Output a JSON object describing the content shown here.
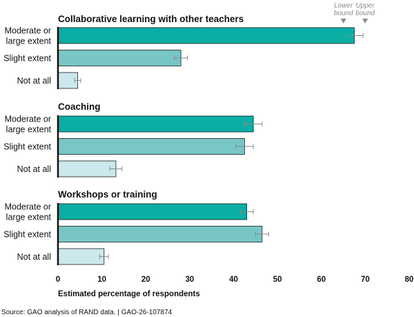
{
  "chart_data": {
    "type": "bar",
    "orientation": "horizontal",
    "xlabel": "Estimated percentage of respondents",
    "xlim": [
      0,
      80
    ],
    "xticks": [
      0,
      10,
      20,
      30,
      40,
      50,
      60,
      70,
      80
    ],
    "categories": [
      [
        "Moderate or",
        "large extent"
      ],
      [
        "Slight extent"
      ],
      [
        "Not at all"
      ]
    ],
    "panels": [
      {
        "title": "Collaborative learning with other teachers",
        "values": [
          67.5,
          28,
          4.5
        ],
        "lower": [
          65.5,
          26.5,
          3.8
        ],
        "upper": [
          69.5,
          29.5,
          5.2
        ]
      },
      {
        "title": "Coaching",
        "values": [
          44.5,
          42.5,
          13.2
        ],
        "lower": [
          42.5,
          40.5,
          11.8
        ],
        "upper": [
          46.5,
          44.5,
          14.6
        ]
      },
      {
        "title": "Workshops or training",
        "values": [
          43,
          46.5,
          10.5
        ],
        "lower": [
          41.5,
          45,
          9.5
        ],
        "upper": [
          44.5,
          48,
          11.5
        ]
      }
    ],
    "bound_labels": {
      "lower": [
        "Lower",
        "bound"
      ],
      "upper": [
        "Upper",
        "bound"
      ]
    },
    "colors": [
      "#0aaea4",
      "#79c6c6",
      "#cbe8ec"
    ],
    "errorbar_color": "#8a8a8a",
    "grid": false
  },
  "footer": {
    "source": "Source: GAO analysis of RAND data.  |  GAO-26-107874"
  }
}
